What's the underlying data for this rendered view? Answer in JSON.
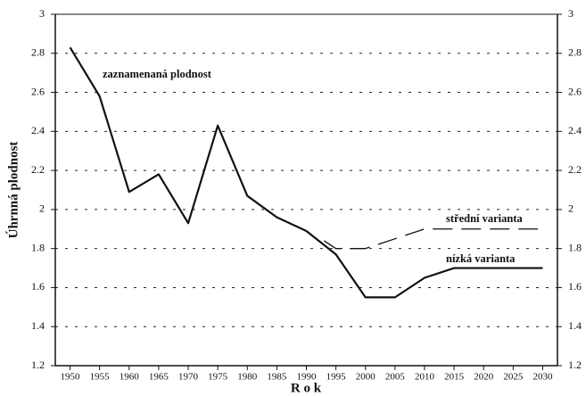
{
  "chart_data": {
    "type": "line",
    "y_label": "Úhrnná plodnost",
    "x_label": "R o k",
    "xlim": [
      1947.5,
      2032.5
    ],
    "xticks": [
      1950,
      1955,
      1960,
      1965,
      1970,
      1975,
      1980,
      1985,
      1990,
      1995,
      2000,
      2005,
      2010,
      2015,
      2020,
      2025,
      2030
    ],
    "ylim": [
      1.2,
      3
    ],
    "yticks": [
      1.2,
      1.4,
      1.6,
      1.8,
      2,
      2.2,
      2.4,
      2.6,
      2.8,
      3
    ],
    "grid": true,
    "series": [
      {
        "name": "zaznamenaná plodnost",
        "color": "#111111",
        "style": "solid",
        "x": [
          1950,
          1955,
          1960,
          1965,
          1970,
          1975,
          1980,
          1985,
          1990
        ],
        "values": [
          2.83,
          2.58,
          2.09,
          2.18,
          1.93,
          2.43,
          2.07,
          1.96,
          1.89
        ]
      },
      {
        "name": "střední varianta",
        "color": "#111111",
        "style": "dashed",
        "x": [
          1993,
          1995,
          2000,
          2010,
          2020,
          2030
        ],
        "values": [
          1.84,
          1.8,
          1.8,
          1.9,
          1.9,
          1.9
        ]
      },
      {
        "name": "nízká varianta",
        "color": "#111111",
        "style": "solid",
        "x": [
          1990,
          1995,
          2000,
          2005,
          2010,
          2015,
          2020,
          2025,
          2030
        ],
        "values": [
          1.89,
          1.77,
          1.55,
          1.55,
          1.65,
          1.7,
          1.7,
          1.7,
          1.7
        ]
      }
    ]
  }
}
